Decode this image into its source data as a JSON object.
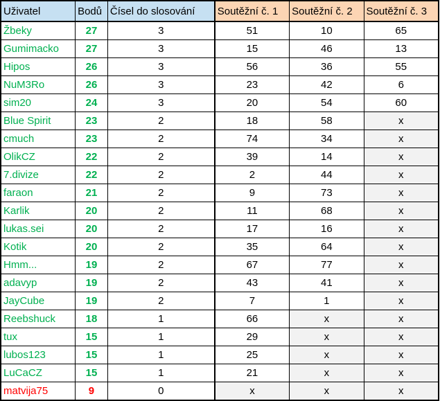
{
  "headers": [
    "Uživatel",
    "Bodů",
    "Čísel do slosování",
    "Soutěžní č. 1",
    "Soutěžní č. 2",
    "Soutěžní č. 3"
  ],
  "colors": {
    "header_blue": "#c6e0f2",
    "header_orange": "#fcd5b4",
    "name_green": "#00b050",
    "name_red": "#ff0000",
    "empty_cell": "#f2f2f2"
  },
  "rows": [
    {
      "user": "Žbeky",
      "points": "27",
      "draws": "3",
      "c1": "51",
      "c2": "10",
      "c3": "65"
    },
    {
      "user": "Gumimacko",
      "points": "27",
      "draws": "3",
      "c1": "15",
      "c2": "46",
      "c3": "13"
    },
    {
      "user": "Hipos",
      "points": "26",
      "draws": "3",
      "c1": "56",
      "c2": "36",
      "c3": "55"
    },
    {
      "user": "NuM3Ro",
      "points": "26",
      "draws": "3",
      "c1": "23",
      "c2": "42",
      "c3": "6"
    },
    {
      "user": "sim20",
      "points": "24",
      "draws": "3",
      "c1": "20",
      "c2": "54",
      "c3": "60"
    },
    {
      "user": "Blue Spirit",
      "points": "23",
      "draws": "2",
      "c1": "18",
      "c2": "58",
      "c3": "x"
    },
    {
      "user": "cmuch",
      "points": "23",
      "draws": "2",
      "c1": "74",
      "c2": "34",
      "c3": "x"
    },
    {
      "user": "OlikCZ",
      "points": "22",
      "draws": "2",
      "c1": "39",
      "c2": "14",
      "c3": "x"
    },
    {
      "user": "7.divize",
      "points": "22",
      "draws": "2",
      "c1": "2",
      "c2": "44",
      "c3": "x"
    },
    {
      "user": "faraon",
      "points": "21",
      "draws": "2",
      "c1": "9",
      "c2": "73",
      "c3": "x"
    },
    {
      "user": "Karlik",
      "points": "20",
      "draws": "2",
      "c1": "11",
      "c2": "68",
      "c3": "x"
    },
    {
      "user": "lukas.sei",
      "points": "20",
      "draws": "2",
      "c1": "17",
      "c2": "16",
      "c3": "x"
    },
    {
      "user": "Kotik",
      "points": "20",
      "draws": "2",
      "c1": "35",
      "c2": "64",
      "c3": "x"
    },
    {
      "user": "Hmm...",
      "points": "19",
      "draws": "2",
      "c1": "67",
      "c2": "77",
      "c3": "x"
    },
    {
      "user": "adavyp",
      "points": "19",
      "draws": "2",
      "c1": "43",
      "c2": "41",
      "c3": "x"
    },
    {
      "user": "JayCube",
      "points": "19",
      "draws": "2",
      "c1": "7",
      "c2": "1",
      "c3": "x"
    },
    {
      "user": "Reebshuck",
      "points": "18",
      "draws": "1",
      "c1": "66",
      "c2": "x",
      "c3": "x"
    },
    {
      "user": "tux",
      "points": "15",
      "draws": "1",
      "c1": "29",
      "c2": "x",
      "c3": "x"
    },
    {
      "user": "lubos123",
      "points": "15",
      "draws": "1",
      "c1": "25",
      "c2": "x",
      "c3": "x"
    },
    {
      "user": "LuCaCZ",
      "points": "15",
      "draws": "1",
      "c1": "21",
      "c2": "x",
      "c3": "x"
    },
    {
      "user": "matvija75",
      "points": "9",
      "draws": "0",
      "c1": "x",
      "c2": "x",
      "c3": "x",
      "highlight": "red"
    }
  ]
}
